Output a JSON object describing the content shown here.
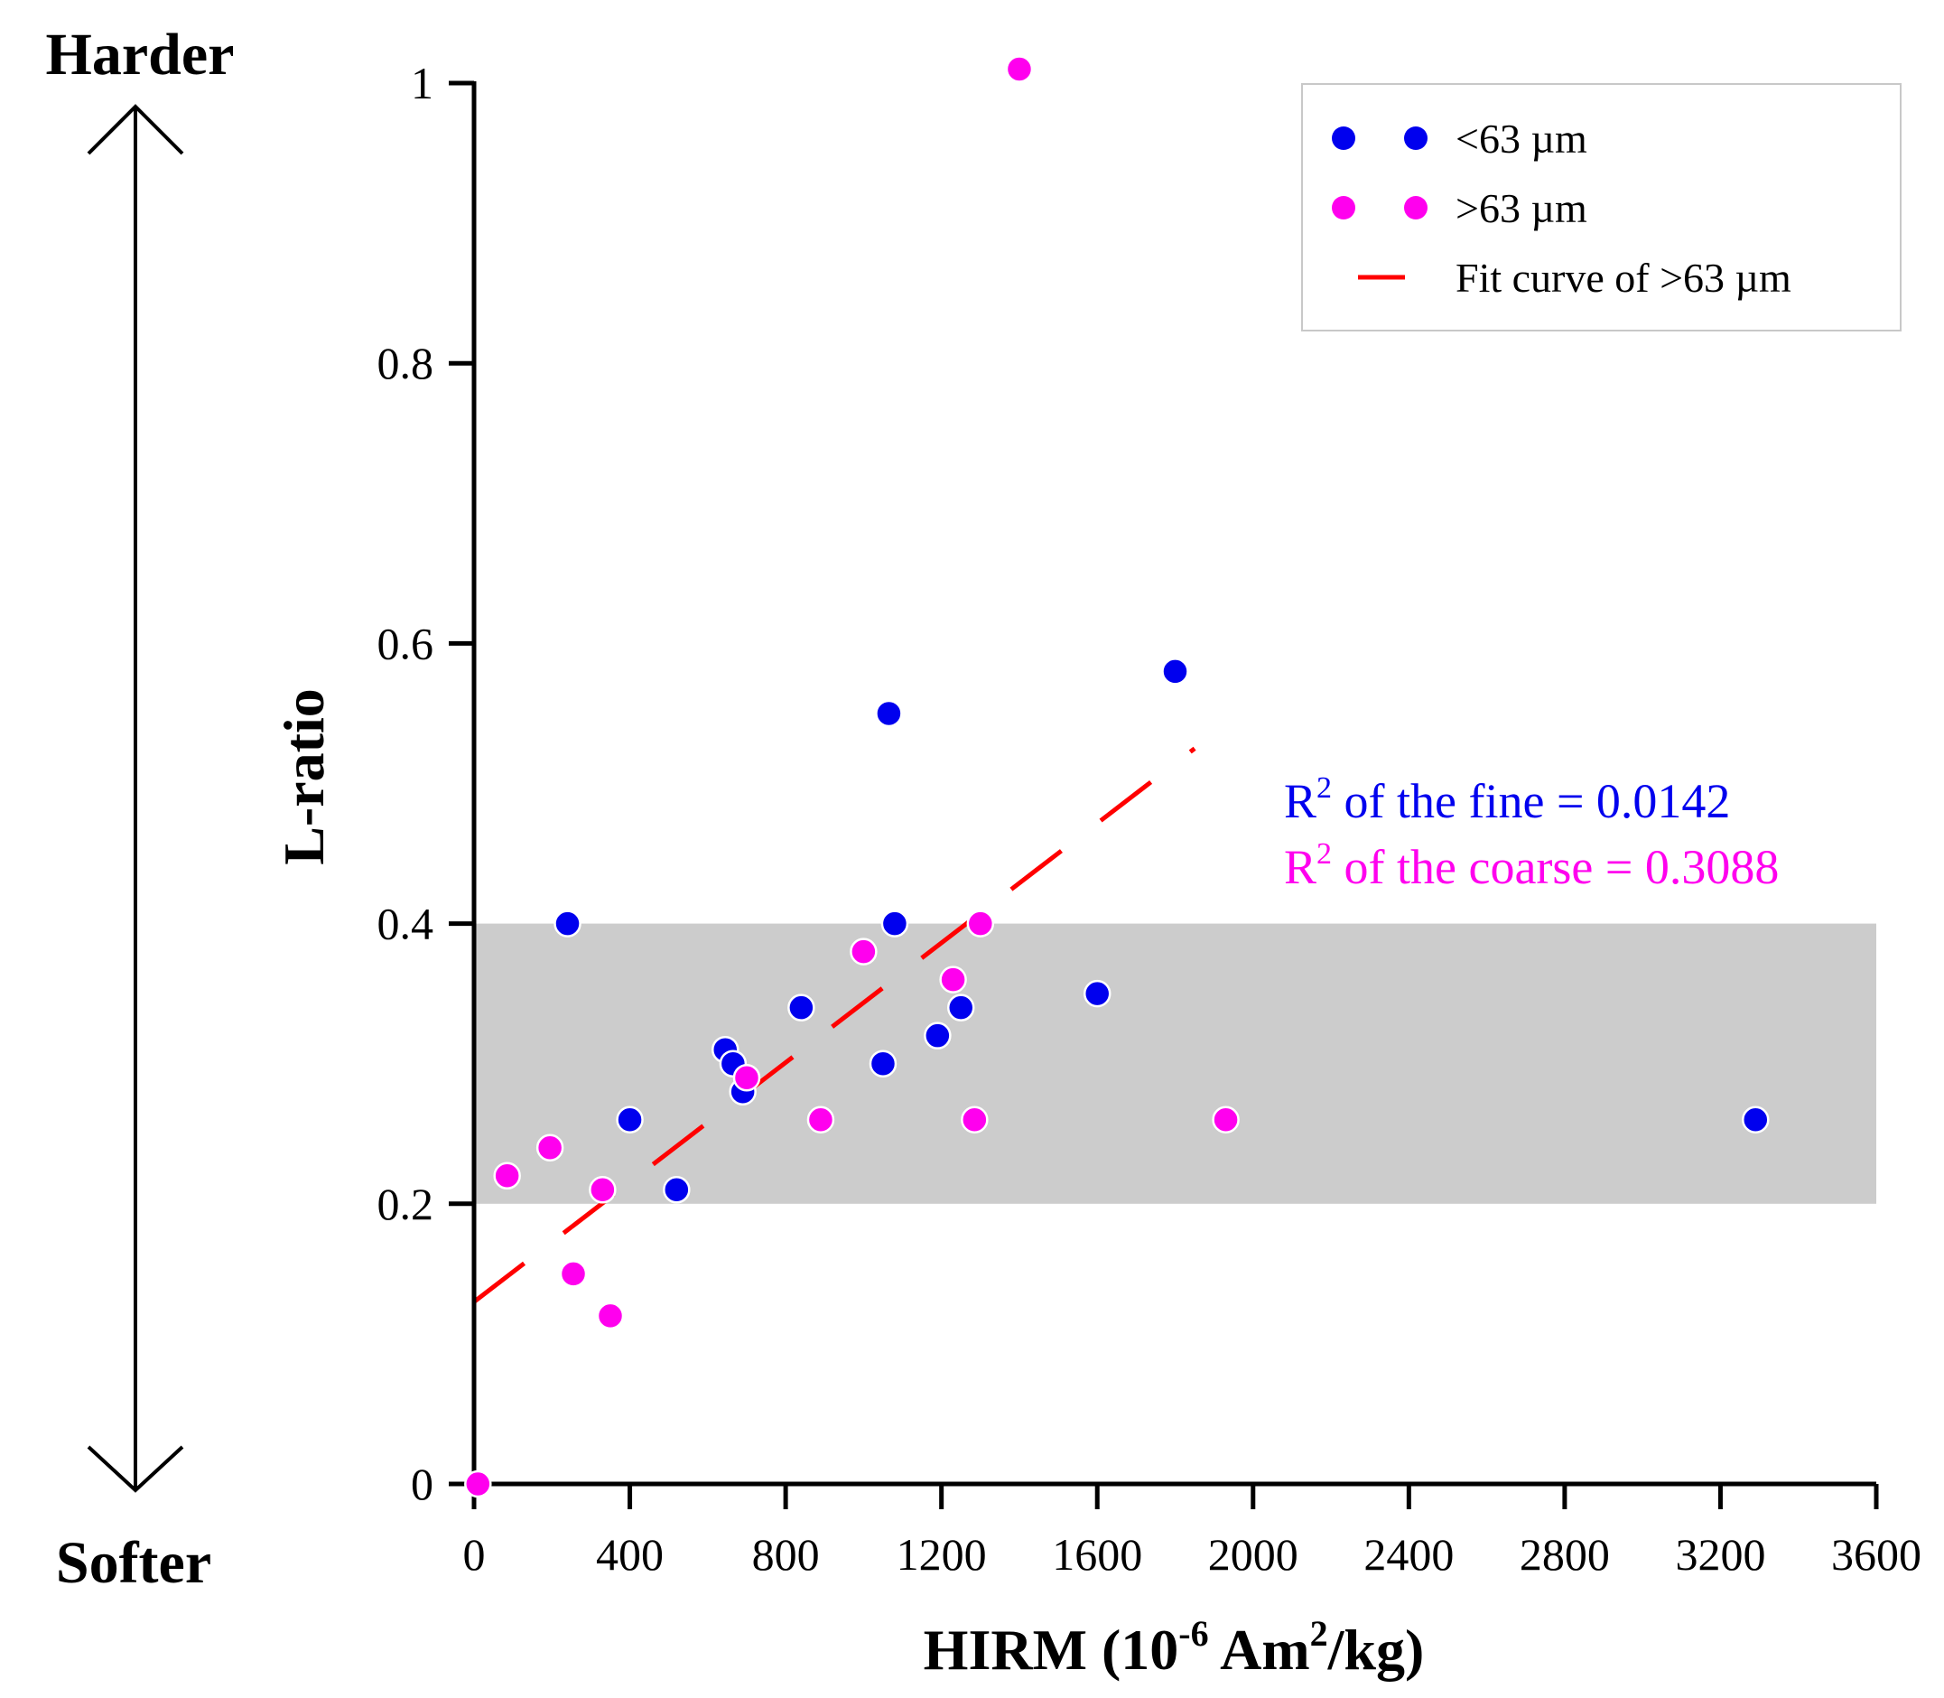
{
  "chart_data": {
    "type": "scatter",
    "title": "",
    "xlabel": "HIRM (10⁻⁶ Am²/kg)",
    "xlabel_parts": {
      "prefix": "HIRM (10",
      "exp1": "-6",
      "mid": " Am",
      "exp2": "2",
      "suffix": "/kg)"
    },
    "ylabel": "L-ratio",
    "xlim": [
      0,
      3600
    ],
    "ylim": [
      0,
      1
    ],
    "x_ticks": [
      0,
      400,
      800,
      1200,
      1600,
      2000,
      2400,
      2800,
      3200,
      3600
    ],
    "x_tick_labels": [
      "0",
      "400",
      "800",
      "1200",
      "1600",
      "2000",
      "2400",
      "2800",
      "3200",
      "3600"
    ],
    "y_ticks": [
      0,
      0.2,
      0.4,
      0.6,
      0.8,
      1
    ],
    "y_tick_labels": [
      "0",
      "0.2",
      "0.4",
      "0.6",
      "0.8",
      "1"
    ],
    "shaded_band": {
      "y_from": 0.2,
      "y_to": 0.4,
      "color": "#cccccc"
    },
    "series": [
      {
        "name": "<63 µm",
        "color": "#0000ee",
        "points": [
          [
            240,
            0.4
          ],
          [
            400,
            0.26
          ],
          [
            520,
            0.21
          ],
          [
            645,
            0.31
          ],
          [
            665,
            0.3
          ],
          [
            690,
            0.28
          ],
          [
            840,
            0.34
          ],
          [
            1050,
            0.3
          ],
          [
            1065,
            0.55
          ],
          [
            1080,
            0.4
          ],
          [
            1190,
            0.32
          ],
          [
            1250,
            0.34
          ],
          [
            1600,
            0.35
          ],
          [
            1800,
            0.58
          ],
          [
            3290,
            0.26
          ]
        ]
      },
      {
        "name": ">63 µm",
        "color": "#ff00ee",
        "points": [
          [
            10,
            0.0
          ],
          [
            85,
            0.22
          ],
          [
            195,
            0.24
          ],
          [
            255,
            0.15
          ],
          [
            330,
            0.21
          ],
          [
            350,
            0.12
          ],
          [
            700,
            0.29
          ],
          [
            890,
            0.26
          ],
          [
            1000,
            0.38
          ],
          [
            1230,
            0.36
          ],
          [
            1285,
            0.26
          ],
          [
            1300,
            0.4
          ],
          [
            1400,
            1.01
          ],
          [
            1930,
            0.26
          ]
        ]
      }
    ],
    "fit_line": {
      "name": "Fit curve of >63 µm",
      "color": "#ff0000",
      "from": [
        0,
        0.13
      ],
      "to": [
        1850,
        0.525
      ]
    },
    "legend": {
      "position": "top-right",
      "entries": [
        {
          "label": "<63 µm",
          "kind": "marker",
          "color": "#0000ee"
        },
        {
          "label": ">63 µm",
          "kind": "marker",
          "color": "#ff00ee"
        },
        {
          "label": "Fit curve of >63 µm",
          "kind": "dash",
          "color": "#ff0000"
        }
      ]
    },
    "annotations": {
      "r2_fine": {
        "prefix": "R",
        "sup": "2",
        "text": " of the fine = 0.0142",
        "color": "#0000ee"
      },
      "r2_coarse": {
        "prefix": "R",
        "sup": "2",
        "text": " of the coarse = 0.3088",
        "color": "#ff00ee"
      },
      "harder": "Harder",
      "softer": "Softer"
    }
  }
}
